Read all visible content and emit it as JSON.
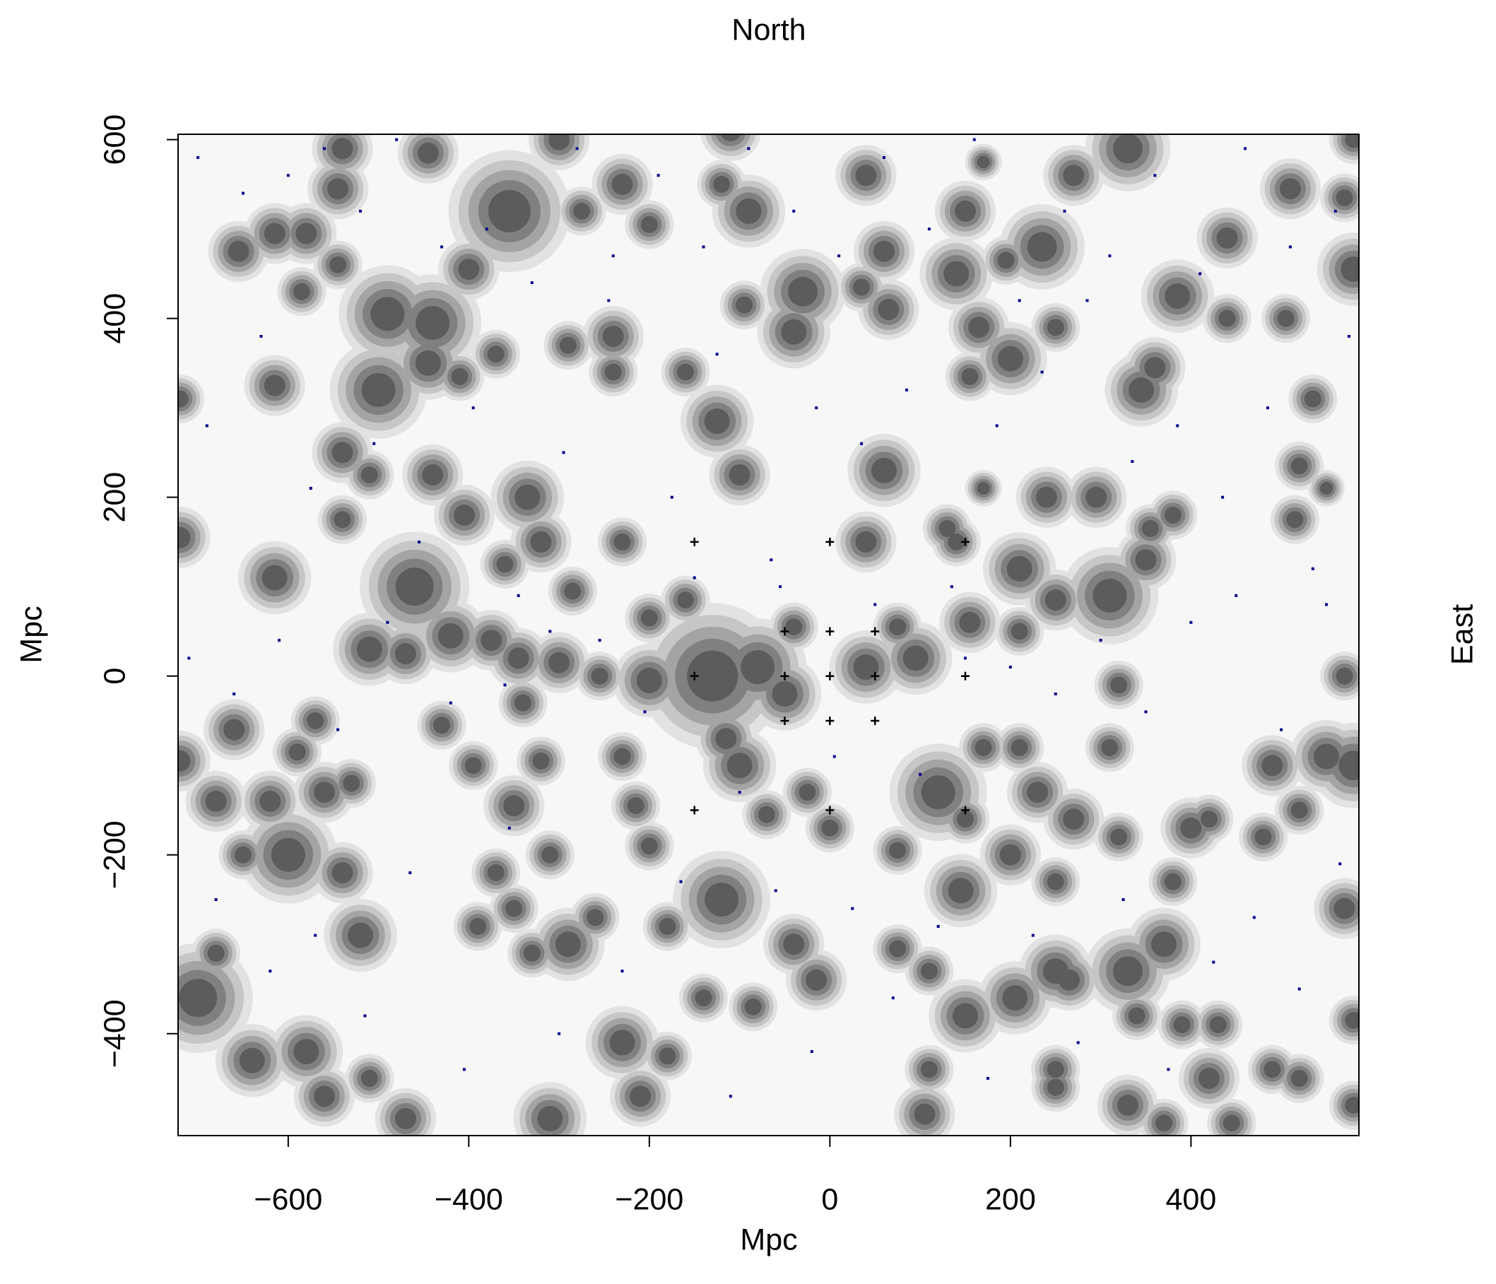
{
  "chart_data": {
    "type": "scatter",
    "title": "North",
    "xlabel": "Mpc",
    "ylabel": "Mpc",
    "right_label": "East",
    "xlim": [
      -722,
      586
    ],
    "ylim": [
      -514,
      606
    ],
    "xticks": [
      {
        "value": -600,
        "label": "−600"
      },
      {
        "value": -400,
        "label": "−400"
      },
      {
        "value": -200,
        "label": "−200"
      },
      0,
      200,
      400
    ],
    "yticks": [
      {
        "value": -400,
        "label": "−400"
      },
      {
        "value": -200,
        "label": "−200"
      },
      0,
      200,
      400,
      600
    ],
    "density": {
      "colors": [
        "#e2e2e2",
        "#c6c6c6",
        "#a4a4a4",
        "#808080",
        "#5c5c5c"
      ],
      "x": [
        -540,
        -445,
        -300,
        -110,
        330,
        580,
        -545,
        -355,
        -275,
        -230,
        -200,
        -120,
        -90,
        40,
        150,
        170,
        270,
        510,
        570,
        -655,
        -615,
        -580,
        -585,
        -545,
        -490,
        -440,
        -400,
        -30,
        -95,
        35,
        60,
        65,
        140,
        195,
        235,
        165,
        200,
        155,
        250,
        440,
        385,
        360,
        345,
        440,
        505,
        580,
        535,
        -615,
        -540,
        -500,
        -445,
        -410,
        -370,
        -290,
        -240,
        -240,
        -40,
        -160,
        -125,
        -100,
        60,
        -440,
        -405,
        -510,
        -540,
        -335,
        -320,
        -230,
        40,
        130,
        140,
        170,
        240,
        295,
        355,
        520,
        550,
        515,
        -720,
        -720,
        -615,
        -460,
        -360,
        -285,
        -200,
        -160,
        -510,
        -470,
        -420,
        -375,
        -345,
        -300,
        -255,
        -200,
        -130,
        -80,
        -50,
        -115,
        -40,
        40,
        75,
        95,
        155,
        210,
        250,
        210,
        310,
        350,
        380,
        -720,
        -680,
        -660,
        -620,
        -590,
        -570,
        -560,
        -530,
        -600,
        -540,
        -650,
        -370,
        -350,
        -395,
        -320,
        -230,
        -215,
        -200,
        -100,
        -70,
        -25,
        0,
        -340,
        -430,
        -310,
        -260,
        -290,
        -330,
        -390,
        -350,
        -180,
        -120,
        -140,
        -85,
        -40,
        -15,
        75,
        75,
        120,
        150,
        170,
        145,
        210,
        230,
        200,
        250,
        270,
        320,
        310,
        320,
        380,
        400,
        420,
        150,
        110,
        205,
        250,
        265,
        330,
        370,
        390,
        340,
        430,
        110,
        105,
        250,
        250,
        330,
        420,
        445,
        370,
        490,
        520,
        580,
        580,
        570,
        490,
        520,
        550,
        580,
        570,
        480,
        -700,
        -680,
        -640,
        -580,
        -560,
        -510,
        -520,
        -470,
        -310,
        -230,
        -210,
        -180
      ],
      "y": [
        590,
        585,
        600,
        610,
        590,
        600,
        545,
        520,
        520,
        550,
        505,
        550,
        520,
        560,
        520,
        575,
        560,
        545,
        535,
        475,
        495,
        495,
        430,
        460,
        405,
        395,
        455,
        430,
        415,
        435,
        475,
        410,
        450,
        465,
        480,
        390,
        355,
        335,
        390,
        490,
        425,
        345,
        320,
        400,
        400,
        455,
        310,
        325,
        250,
        320,
        350,
        335,
        360,
        370,
        380,
        340,
        385,
        340,
        285,
        225,
        230,
        225,
        180,
        225,
        175,
        200,
        150,
        150,
        150,
        165,
        150,
        210,
        200,
        200,
        165,
        235,
        210,
        175,
        310,
        155,
        110,
        100,
        125,
        95,
        65,
        85,
        30,
        25,
        45,
        40,
        20,
        15,
        0,
        -5,
        0,
        10,
        -20,
        -70,
        55,
        10,
        55,
        20,
        60,
        120,
        85,
        50,
        90,
        130,
        180,
        -95,
        -140,
        -60,
        -140,
        -85,
        -50,
        -130,
        -120,
        -200,
        -220,
        -200,
        -220,
        -145,
        -100,
        -95,
        -90,
        -145,
        -190,
        -100,
        -155,
        -130,
        -170,
        -30,
        -55,
        -200,
        -270,
        -300,
        -310,
        -280,
        -260,
        -280,
        -250,
        -360,
        -370,
        -300,
        -340,
        -305,
        -195,
        -130,
        -160,
        -80,
        -240,
        -80,
        -130,
        -200,
        -230,
        -160,
        -180,
        -80,
        -10,
        -230,
        -170,
        -160,
        -380,
        -330,
        -360,
        -330,
        -340,
        -330,
        -300,
        -390,
        -380,
        -390,
        -440,
        -490,
        -440,
        -460,
        -480,
        -450,
        -500,
        -500,
        -440,
        -450,
        -480,
        -385,
        -260,
        -100,
        -150,
        -90,
        -100,
        0,
        -180,
        -360,
        -310,
        -430,
        -420,
        -470,
        -450,
        -290,
        -495,
        -495,
        -410,
        -470,
        -425
      ],
      "r": [
        25,
        25,
        25,
        25,
        35,
        20,
        25,
        50,
        20,
        25,
        20,
        20,
        30,
        25,
        25,
        15,
        25,
        25,
        20,
        25,
        25,
        25,
        20,
        20,
        40,
        40,
        25,
        35,
        20,
        20,
        25,
        25,
        30,
        20,
        35,
        25,
        30,
        20,
        20,
        25,
        30,
        25,
        30,
        20,
        20,
        30,
        20,
        25,
        25,
        40,
        30,
        20,
        20,
        20,
        25,
        20,
        30,
        20,
        30,
        25,
        30,
        25,
        25,
        20,
        20,
        30,
        25,
        20,
        25,
        20,
        20,
        15,
        25,
        25,
        20,
        20,
        15,
        20,
        20,
        25,
        30,
        45,
        20,
        20,
        20,
        20,
        30,
        25,
        30,
        25,
        25,
        25,
        20,
        30,
        60,
        40,
        30,
        25,
        20,
        30,
        20,
        30,
        25,
        30,
        25,
        20,
        40,
        25,
        20,
        25,
        25,
        25,
        25,
        20,
        20,
        25,
        20,
        40,
        25,
        20,
        20,
        25,
        20,
        20,
        20,
        20,
        20,
        30,
        20,
        20,
        20,
        20,
        20,
        20,
        20,
        30,
        20,
        20,
        20,
        20,
        40,
        20,
        20,
        25,
        25,
        20,
        20,
        40,
        20,
        20,
        30,
        20,
        25,
        25,
        20,
        25,
        20,
        20,
        20,
        20,
        25,
        20,
        30,
        20,
        30,
        30,
        25,
        35,
        30,
        20,
        20,
        20,
        20,
        25,
        20,
        20,
        25,
        25,
        20,
        20,
        20,
        20,
        20,
        20,
        25,
        25,
        20,
        30,
        35,
        20,
        20,
        45,
        20,
        30,
        30,
        25,
        20,
        30,
        25,
        30,
        30,
        25,
        20
      ]
    },
    "crosses": {
      "color": "#000000",
      "x": [
        -150,
        0,
        150,
        -50,
        0,
        50,
        -150,
        -50,
        0,
        50,
        150,
        -50,
        0,
        50,
        -150,
        0,
        150
      ],
      "y": [
        150,
        150,
        150,
        50,
        50,
        50,
        0,
        0,
        0,
        0,
        0,
        -50,
        -50,
        -50,
        -150,
        -150,
        -150
      ]
    },
    "points": {
      "color": "#00008b",
      "x": [
        -700,
        -650,
        -600,
        -560,
        -520,
        -480,
        -430,
        -380,
        -330,
        -280,
        -240,
        -190,
        -140,
        -90,
        -40,
        10,
        60,
        110,
        160,
        210,
        260,
        310,
        360,
        410,
        460,
        510,
        560,
        -690,
        -630,
        -575,
        -505,
        -455,
        -395,
        -345,
        -295,
        -245,
        -175,
        -125,
        -65,
        -15,
        35,
        85,
        135,
        185,
        235,
        285,
        335,
        385,
        435,
        485,
        535,
        575,
        -710,
        -660,
        -610,
        -545,
        -490,
        -420,
        -360,
        -310,
        -255,
        -205,
        -150,
        -100,
        -55,
        5,
        50,
        100,
        150,
        200,
        250,
        300,
        350,
        400,
        450,
        500,
        550,
        -680,
        -620,
        -570,
        -515,
        -465,
        -405,
        -355,
        -300,
        -230,
        -165,
        -110,
        -60,
        -20,
        25,
        70,
        120,
        175,
        225,
        275,
        325,
        375,
        425,
        470,
        520,
        565
      ],
      "y": [
        580,
        540,
        560,
        590,
        520,
        600,
        480,
        500,
        440,
        590,
        470,
        560,
        480,
        590,
        520,
        470,
        580,
        500,
        600,
        420,
        520,
        470,
        560,
        450,
        590,
        480,
        520,
        280,
        380,
        210,
        260,
        150,
        300,
        90,
        250,
        420,
        200,
        360,
        130,
        300,
        260,
        320,
        100,
        280,
        340,
        420,
        240,
        280,
        200,
        300,
        120,
        380,
        20,
        -20,
        40,
        -60,
        60,
        -30,
        -10,
        50,
        40,
        -40,
        110,
        -130,
        100,
        -90,
        80,
        -110,
        20,
        10,
        -20,
        40,
        -40,
        60,
        90,
        -60,
        80,
        -250,
        -330,
        -290,
        -380,
        -220,
        -440,
        -170,
        -400,
        -330,
        -230,
        -470,
        -240,
        -420,
        -260,
        -360,
        -280,
        -450,
        -290,
        -410,
        -250,
        -440,
        -320,
        -270,
        -350,
        -210
      ]
    }
  }
}
